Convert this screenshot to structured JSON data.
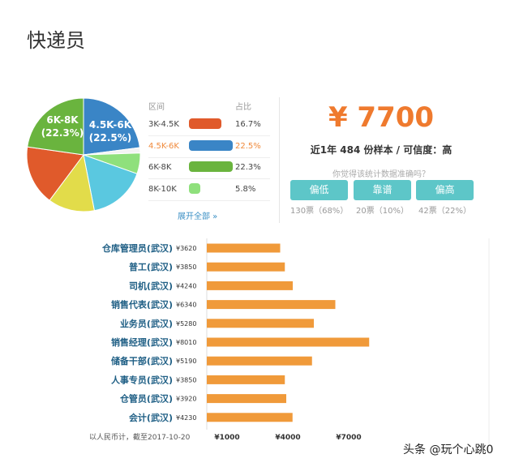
{
  "page": {
    "title": "快递员"
  },
  "distribution": {
    "header_range": "区间",
    "header_pct": "占比",
    "expand_label": "展开全部 »",
    "rows": [
      {
        "range": "3K-4.5K",
        "pct": "16.7%",
        "value": 16.7,
        "color": "#e05a2b",
        "active": false
      },
      {
        "range": "4.5K-6K",
        "pct": "22.5%",
        "value": 22.5,
        "color": "#3a85c6",
        "active": true
      },
      {
        "range": "6K-8K",
        "pct": "22.3%",
        "value": 22.3,
        "color": "#6ab43e",
        "active": false
      },
      {
        "range": "8K-10K",
        "pct": "5.8%",
        "value": 5.8,
        "color": "#8fe07c",
        "active": false
      }
    ]
  },
  "pie_labels": {
    "a_range": "4.5K-6K",
    "a_pct": "(22.5%)",
    "b_range": "6K-8K",
    "b_pct": "(22.3%)"
  },
  "summary": {
    "salary": "¥ 7700",
    "sample": "近1年 484 份样本 / 可信度：高",
    "question": "你觉得该统计数据准确吗？",
    "votes": [
      {
        "label": "偏低",
        "count": "130票（68%）"
      },
      {
        "label": "靠谱",
        "count": "20票（10%）"
      },
      {
        "label": "偏高",
        "count": "42票（22%）"
      }
    ]
  },
  "chart_data": [
    {
      "type": "pie",
      "slices": [
        {
          "label": "4.5K-6K",
          "value": 22.5,
          "color": "#3a85c6"
        },
        {
          "label": "",
          "value": 1.5,
          "color": "#f3f3f3"
        },
        {
          "label": "8K-10K",
          "value": 5.8,
          "color": "#8fe07c"
        },
        {
          "label": "",
          "value": 16.2,
          "color": "#5ac8e0"
        },
        {
          "label": "",
          "value": 13.0,
          "color": "#e2dc4a"
        },
        {
          "label": "3K-4.5K",
          "value": 16.7,
          "color": "#e05a2b"
        },
        {
          "label": "6K-8K",
          "value": 22.3,
          "color": "#6ab43e"
        }
      ]
    },
    {
      "type": "bar",
      "orientation": "horizontal",
      "categories": [
        "仓库管理员(武汉)",
        "普工(武汉)",
        "司机(武汉)",
        "销售代表(武汉)",
        "业务员(武汉)",
        "销售经理(武汉)",
        "储备干部(武汉)",
        "人事专员(武汉)",
        "仓管员(武汉)",
        "会计(武汉)"
      ],
      "value_labels": [
        "¥3620",
        "¥3850",
        "¥4240",
        "¥6340",
        "¥5280",
        "¥8010",
        "¥5190",
        "¥3850",
        "¥3920",
        "¥4230"
      ],
      "values": [
        3620,
        3850,
        4240,
        6340,
        5280,
        8010,
        5190,
        3850,
        3920,
        4230
      ],
      "color": "#f09a3a",
      "xticks": [
        1000,
        4000,
        7000
      ],
      "xtick_labels": [
        "¥1000",
        "¥4000",
        "¥7000"
      ],
      "footnote": "以人民币计，截至2017-10-20"
    }
  ],
  "watermark": "头条 @玩个心跳0"
}
